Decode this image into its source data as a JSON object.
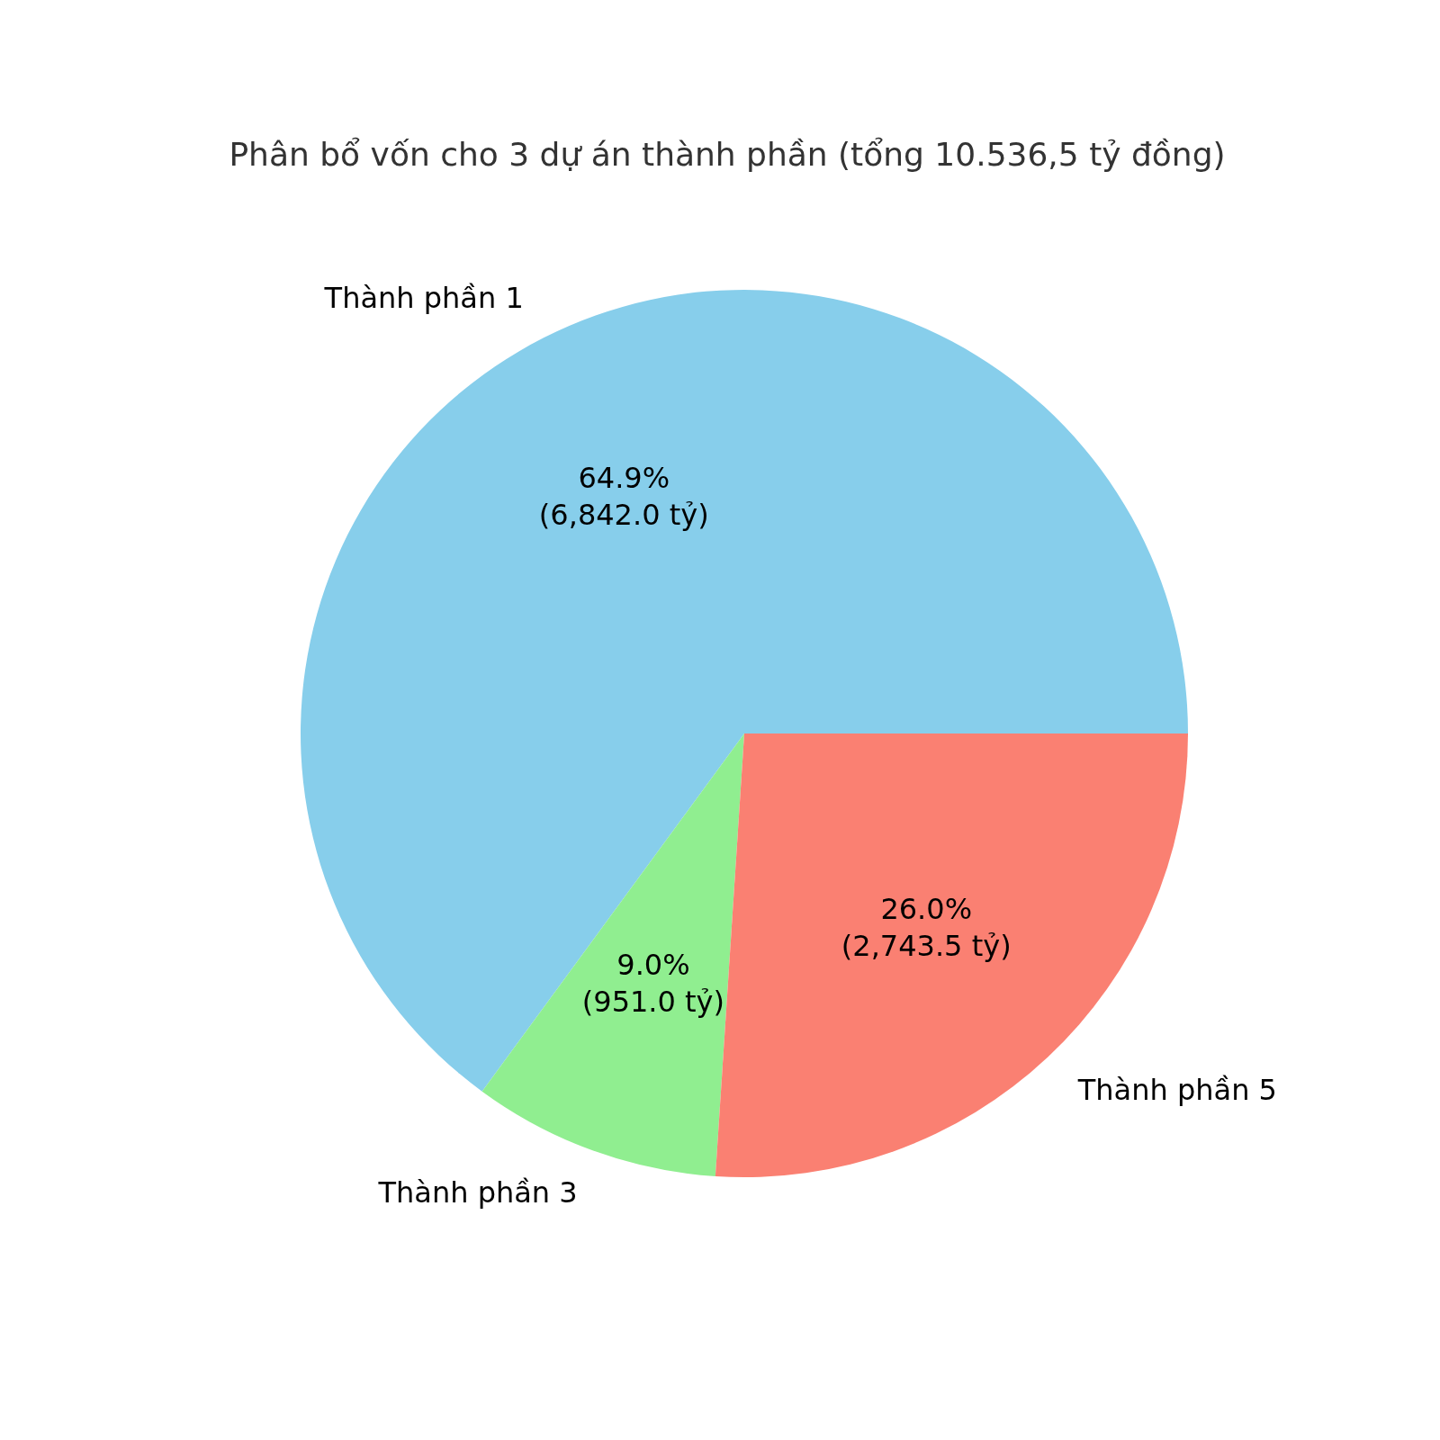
{
  "chart_data": {
    "type": "pie",
    "title": "Phân bổ vốn cho 3 dự án thành phần (tổng 10.536,5 tỷ đồng)",
    "categories": [
      "Thành phần 1",
      "Thành phần 3",
      "Thành phần 5"
    ],
    "values": [
      6842.0,
      951.0,
      2743.5
    ],
    "colors": [
      "#87ceeb",
      "#90ee90",
      "#fa8072"
    ],
    "value_labels": [
      "64.9%\n(6,842.0 tỷ)",
      "9.0%\n(951.0 tỷ)",
      "26.0%\n(2,743.5 tỷ)"
    ],
    "legend": false
  }
}
